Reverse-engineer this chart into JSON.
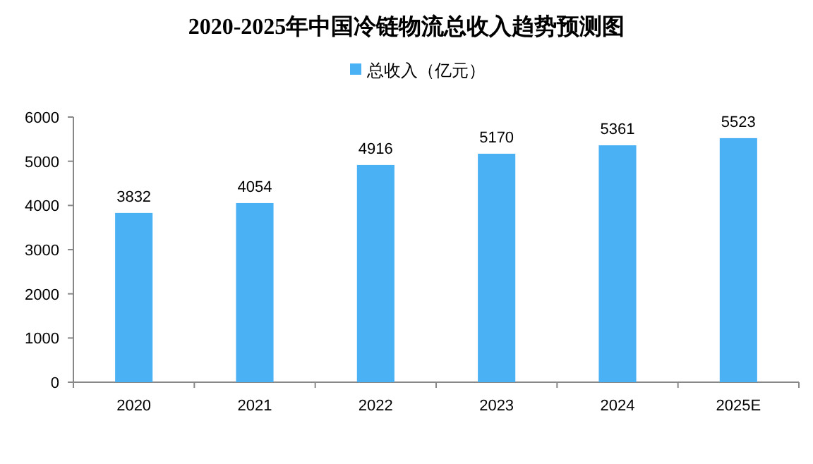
{
  "chart_data": {
    "type": "bar",
    "title": "2020-2025年中国冷链物流总收入趋势预测图",
    "categories": [
      "2020",
      "2021",
      "2022",
      "2023",
      "2024",
      "2025E"
    ],
    "series": [
      {
        "name": "总收入（亿元）",
        "color": "#4bb1f5",
        "values": [
          3832,
          4054,
          4916,
          5170,
          5361,
          5523
        ]
      }
    ],
    "ylim": [
      0,
      6000
    ],
    "yticks": [
      0,
      1000,
      2000,
      3000,
      4000,
      5000,
      6000
    ],
    "data_labels": true,
    "legend": "top",
    "grid": false
  }
}
